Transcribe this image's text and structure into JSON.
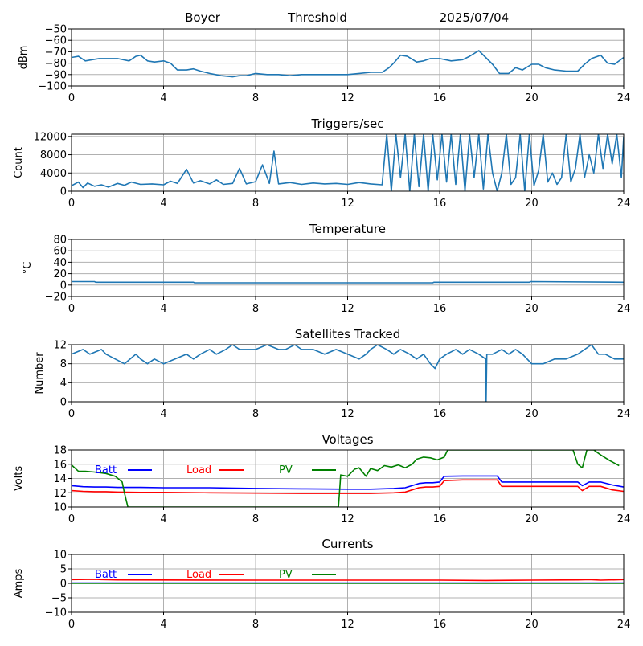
{
  "header": {
    "station": "Boyer",
    "label": "Threshold",
    "date": "2025/07/04"
  },
  "x_ticks": [
    0,
    4,
    8,
    12,
    16,
    20,
    24
  ],
  "colors": {
    "series": "#1f77b4",
    "batt": "#0000ff",
    "load": "#ff0000",
    "pv": "#008000",
    "grid": "#b0b0b0"
  },
  "chart_data": [
    {
      "type": "line",
      "title": "",
      "ylabel": "dBm",
      "ylim": [
        -100,
        -50
      ],
      "yticks": [
        -100,
        -90,
        -80,
        -70,
        -60,
        -50
      ],
      "xlim": [
        0,
        24
      ],
      "series": [
        {
          "x": [
            0,
            0.3,
            0.6,
            0.9,
            1.2,
            1.5,
            2.0,
            2.5,
            2.8,
            3.0,
            3.3,
            3.6,
            4.0,
            4.3,
            4.6,
            5.0,
            5.3,
            5.6,
            6.0,
            6.5,
            7.0,
            7.3,
            7.6,
            8.0,
            8.5,
            9.0,
            9.5,
            10,
            10.5,
            11,
            11.5,
            12,
            12.5,
            13,
            13.5,
            13.8,
            14.0,
            14.3,
            14.6,
            15.0,
            15.3,
            15.6,
            16,
            16.5,
            17,
            17.3,
            17.7,
            18.0,
            18.3,
            18.6,
            19.0,
            19.3,
            19.6,
            20.0,
            20.3,
            20.6,
            21.0,
            21.5,
            22,
            22.3,
            22.6,
            23.0,
            23.3,
            23.6,
            24
          ],
          "y": [
            -75,
            -74,
            -78,
            -77,
            -76,
            -76,
            -76,
            -78,
            -74,
            -73,
            -78,
            -79,
            -78,
            -80,
            -86,
            -86,
            -85,
            -87,
            -89,
            -91,
            -92,
            -91,
            -91,
            -89,
            -90,
            -90,
            -91,
            -90,
            -90,
            -90,
            -90,
            -90,
            -89,
            -88,
            -88,
            -84,
            -80,
            -73,
            -74,
            -79,
            -78,
            -76,
            -76,
            -78,
            -77,
            -74,
            -69,
            -75,
            -81,
            -89,
            -89,
            -84,
            -86,
            -81,
            -81,
            -84,
            -86,
            -87,
            -87,
            -81,
            -76,
            -73,
            -80,
            -81,
            -75
          ]
        }
      ]
    },
    {
      "type": "line",
      "title": "Triggers/sec",
      "ylabel": "Count",
      "ylim": [
        0,
        12500
      ],
      "yticks": [
        0,
        4000,
        8000,
        12000
      ],
      "xlim": [
        0,
        24
      ],
      "series": [
        {
          "x": [
            0,
            0.3,
            0.5,
            0.7,
            1.0,
            1.3,
            1.6,
            2.0,
            2.3,
            2.6,
            3.0,
            3.5,
            4.0,
            4.3,
            4.6,
            5.0,
            5.3,
            5.6,
            6.0,
            6.3,
            6.6,
            7.0,
            7.3,
            7.6,
            8.0,
            8.3,
            8.6,
            8.8,
            9.0,
            9.5,
            10.0,
            10.5,
            11.0,
            11.5,
            12.0,
            12.5,
            13.0,
            13.5,
            13.7,
            13.9,
            14.1,
            14.3,
            14.5,
            14.7,
            14.9,
            15.1,
            15.3,
            15.5,
            15.7,
            15.9,
            16.1,
            16.3,
            16.5,
            16.7,
            16.9,
            17.1,
            17.3,
            17.5,
            17.7,
            17.9,
            18.1,
            18.3,
            18.5,
            18.7,
            18.9,
            19.1,
            19.3,
            19.5,
            19.7,
            19.9,
            20.1,
            20.3,
            20.5,
            20.7,
            20.9,
            21.1,
            21.3,
            21.5,
            21.7,
            21.9,
            22.1,
            22.3,
            22.5,
            22.7,
            22.9,
            23.1,
            23.3,
            23.5,
            23.7,
            23.9,
            24
          ],
          "y": [
            1200,
            2000,
            800,
            1800,
            1100,
            1400,
            900,
            1700,
            1300,
            2000,
            1500,
            1600,
            1400,
            2200,
            1700,
            4800,
            1800,
            2300,
            1600,
            2500,
            1500,
            1700,
            5000,
            1600,
            2100,
            5800,
            1700,
            8800,
            1600,
            1900,
            1500,
            1800,
            1600,
            1700,
            1500,
            1900,
            1600,
            1400,
            12500,
            0,
            12500,
            3000,
            12500,
            0,
            12500,
            1000,
            12500,
            0,
            12500,
            2500,
            12500,
            2000,
            12500,
            1500,
            12500,
            0,
            12500,
            3000,
            12500,
            500,
            12500,
            4000,
            0,
            4000,
            12500,
            1500,
            3000,
            12500,
            0,
            12500,
            1200,
            4500,
            12500,
            2000,
            4000,
            1500,
            3000,
            12500,
            2000,
            5000,
            12500,
            3000,
            8000,
            4000,
            12500,
            5000,
            12500,
            6000,
            12500,
            3000,
            12000
          ]
        }
      ]
    },
    {
      "type": "line",
      "title": "Temperature",
      "ylabel": "°C",
      "ylim": [
        -20,
        80
      ],
      "yticks": [
        -20,
        0,
        20,
        40,
        60,
        80
      ],
      "xlim": [
        0,
        24
      ],
      "series": [
        {
          "x": [
            0,
            1.0,
            1.05,
            5.3,
            5.35,
            15.7,
            15.75,
            19.9,
            19.95,
            24
          ],
          "y": [
            6,
            6,
            5,
            5,
            4,
            4,
            5,
            5,
            6,
            5
          ]
        }
      ]
    },
    {
      "type": "line",
      "title": "Satellites Tracked",
      "ylabel": "Number",
      "ylim": [
        0,
        12
      ],
      "yticks": [
        0,
        4,
        8,
        12
      ],
      "xlim": [
        0,
        24
      ],
      "series": [
        {
          "x": [
            0,
            0.5,
            0.8,
            1.3,
            1.5,
            1.9,
            2.3,
            2.8,
            3.0,
            3.3,
            3.6,
            4.0,
            4.5,
            5.0,
            5.3,
            5.6,
            6.0,
            6.3,
            6.7,
            7.0,
            7.3,
            7.6,
            8.0,
            8.5,
            9.0,
            9.3,
            9.7,
            10.0,
            10.5,
            11.0,
            11.5,
            12.0,
            12.5,
            12.8,
            13.0,
            13.3,
            13.7,
            14.0,
            14.3,
            14.7,
            15.0,
            15.3,
            15.6,
            15.8,
            16.0,
            16.3,
            16.7,
            17.0,
            17.3,
            17.7,
            18.0,
            18.02,
            18.05,
            18.3,
            18.7,
            19.0,
            19.3,
            19.6,
            20.0,
            20.5,
            21.0,
            21.5,
            22.0,
            22.3,
            22.6,
            22.9,
            23.2,
            23.6,
            24
          ],
          "y": [
            10,
            11,
            10,
            11,
            10,
            9,
            8,
            10,
            9,
            8,
            9,
            8,
            9,
            10,
            9,
            10,
            11,
            10,
            11,
            12,
            11,
            11,
            11,
            12,
            11,
            11,
            12,
            11,
            11,
            10,
            11,
            10,
            9,
            10,
            11,
            12,
            11,
            10,
            11,
            10,
            9,
            10,
            8,
            7,
            9,
            10,
            11,
            10,
            11,
            10,
            9,
            0,
            10,
            10,
            11,
            10,
            11,
            10,
            8,
            8,
            9,
            9,
            10,
            11,
            12,
            10,
            10,
            9,
            9
          ]
        }
      ]
    },
    {
      "type": "line",
      "title": "Voltages",
      "ylabel": "Volts",
      "ylim": [
        10,
        18
      ],
      "yticks": [
        10,
        12,
        14,
        16,
        18
      ],
      "xlim": [
        0,
        24
      ],
      "legend": [
        "Batt",
        "Load",
        "PV"
      ],
      "series": [
        {
          "name": "Batt",
          "x": [
            0,
            0.5,
            1.0,
            1.5,
            2.0,
            3.0,
            4.0,
            6.0,
            8.0,
            10.0,
            12.0,
            13.0,
            14.0,
            14.5,
            14.8,
            15.1,
            15.4,
            15.7,
            16.0,
            16.2,
            17.0,
            18.0,
            18.5,
            18.7,
            19.0,
            20.0,
            21.0,
            22.0,
            22.2,
            22.5,
            23.0,
            23.5,
            24
          ],
          "y": [
            13.0,
            12.85,
            12.8,
            12.8,
            12.75,
            12.75,
            12.7,
            12.7,
            12.6,
            12.55,
            12.5,
            12.5,
            12.6,
            12.7,
            13.0,
            13.3,
            13.4,
            13.4,
            13.5,
            14.3,
            14.35,
            14.35,
            14.35,
            13.5,
            13.5,
            13.5,
            13.5,
            13.5,
            13.0,
            13.5,
            13.5,
            13.1,
            12.8
          ]
        },
        {
          "name": "Load",
          "x": [
            0,
            0.5,
            1.0,
            1.5,
            2.0,
            3.0,
            4.0,
            6.0,
            8.0,
            10.0,
            12.0,
            13.0,
            14.0,
            14.5,
            14.8,
            15.1,
            15.4,
            15.7,
            16.0,
            16.2,
            17.0,
            18.0,
            18.5,
            18.7,
            19.0,
            20.0,
            21.0,
            22.0,
            22.2,
            22.5,
            23.0,
            23.5,
            24
          ],
          "y": [
            12.3,
            12.2,
            12.15,
            12.15,
            12.1,
            12.05,
            12.05,
            12.0,
            11.95,
            11.9,
            11.9,
            11.9,
            12.0,
            12.1,
            12.4,
            12.7,
            12.8,
            12.8,
            12.9,
            13.7,
            13.8,
            13.8,
            13.8,
            12.9,
            12.9,
            12.9,
            12.9,
            12.9,
            12.3,
            12.9,
            12.9,
            12.4,
            12.2
          ]
        },
        {
          "name": "PV",
          "x": [
            0,
            0.3,
            0.6,
            1.0,
            1.5,
            1.9,
            2.2,
            2.3,
            2.45,
            11.6,
            11.7,
            12.0,
            12.3,
            12.5,
            12.8,
            13.0,
            13.3,
            13.6,
            13.9,
            14.2,
            14.5,
            14.8,
            15.0,
            15.3,
            15.6,
            15.9,
            16.2,
            16.35,
            21.8,
            22.0,
            22.2,
            22.4,
            22.7,
            23.0,
            23.4,
            23.8
          ],
          "y": [
            15.9,
            15.0,
            15.0,
            14.9,
            14.7,
            14.3,
            13.5,
            12.0,
            10,
            10,
            14.5,
            14.3,
            15.3,
            15.5,
            14.3,
            15.4,
            15.1,
            15.8,
            15.6,
            15.9,
            15.5,
            16.0,
            16.7,
            17.0,
            16.9,
            16.6,
            17.0,
            18,
            18,
            16.0,
            15.5,
            18,
            18,
            17.3,
            16.5,
            15.8
          ]
        }
      ]
    },
    {
      "type": "line",
      "title": "Currents",
      "ylabel": "Amps",
      "ylim": [
        -10,
        10
      ],
      "yticks": [
        -10,
        -5,
        0,
        5,
        10
      ],
      "xlim": [
        0,
        24
      ],
      "legend": [
        "Batt",
        "Load",
        "PV"
      ],
      "series": [
        {
          "name": "Batt",
          "x": [
            0,
            24
          ],
          "y": [
            0.1,
            0.1
          ]
        },
        {
          "name": "Load",
          "x": [
            0,
            1.0,
            1.3,
            2.0,
            8.0,
            12.0,
            15.0,
            16.0,
            18.0,
            20.0,
            22.0,
            22.5,
            23.0,
            24
          ],
          "y": [
            1.3,
            1.4,
            1.3,
            1.2,
            1.1,
            1.1,
            1.1,
            1.1,
            1.0,
            1.1,
            1.2,
            1.3,
            1.1,
            1.3
          ]
        },
        {
          "name": "PV",
          "x": [
            0,
            24
          ],
          "y": [
            0.0,
            0.0
          ]
        }
      ]
    }
  ]
}
